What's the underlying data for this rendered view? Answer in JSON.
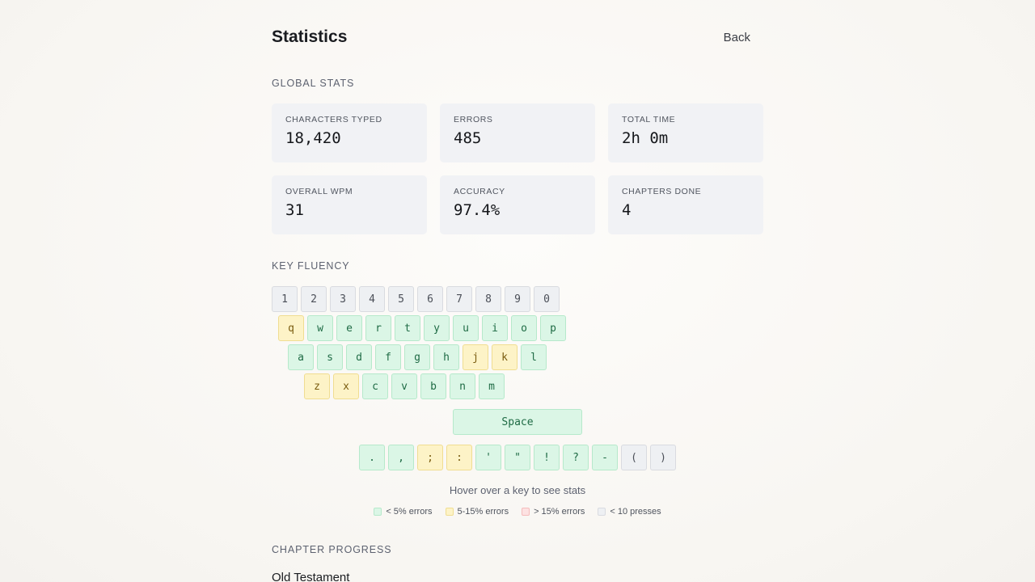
{
  "header": {
    "title": "Statistics",
    "back_label": "Back"
  },
  "global_stats": {
    "section_label": "GLOBAL STATS",
    "cards": [
      {
        "label": "CHARACTERS TYPED",
        "value": "18,420"
      },
      {
        "label": "ERRORS",
        "value": "485"
      },
      {
        "label": "TOTAL TIME",
        "value": "2h 0m"
      },
      {
        "label": "OVERALL WPM",
        "value": "31"
      },
      {
        "label": "ACCURACY",
        "value": "97.4%"
      },
      {
        "label": "CHAPTERS DONE",
        "value": "4"
      }
    ]
  },
  "key_fluency": {
    "section_label": "KEY FLUENCY",
    "rows": [
      [
        {
          "key": "1",
          "level": "gray"
        },
        {
          "key": "2",
          "level": "gray"
        },
        {
          "key": "3",
          "level": "gray"
        },
        {
          "key": "4",
          "level": "gray"
        },
        {
          "key": "5",
          "level": "gray"
        },
        {
          "key": "6",
          "level": "gray"
        },
        {
          "key": "7",
          "level": "gray"
        },
        {
          "key": "8",
          "level": "gray"
        },
        {
          "key": "9",
          "level": "gray"
        },
        {
          "key": "0",
          "level": "gray"
        }
      ],
      [
        {
          "key": "q",
          "level": "yellow"
        },
        {
          "key": "w",
          "level": "green"
        },
        {
          "key": "e",
          "level": "green"
        },
        {
          "key": "r",
          "level": "green"
        },
        {
          "key": "t",
          "level": "green"
        },
        {
          "key": "y",
          "level": "green"
        },
        {
          "key": "u",
          "level": "green"
        },
        {
          "key": "i",
          "level": "green"
        },
        {
          "key": "o",
          "level": "green"
        },
        {
          "key": "p",
          "level": "green"
        }
      ],
      [
        {
          "key": "a",
          "level": "green"
        },
        {
          "key": "s",
          "level": "green"
        },
        {
          "key": "d",
          "level": "green"
        },
        {
          "key": "f",
          "level": "green"
        },
        {
          "key": "g",
          "level": "green"
        },
        {
          "key": "h",
          "level": "green"
        },
        {
          "key": "j",
          "level": "yellow"
        },
        {
          "key": "k",
          "level": "yellow"
        },
        {
          "key": "l",
          "level": "green"
        }
      ],
      [
        {
          "key": "z",
          "level": "yellow"
        },
        {
          "key": "x",
          "level": "yellow"
        },
        {
          "key": "c",
          "level": "green"
        },
        {
          "key": "v",
          "level": "green"
        },
        {
          "key": "b",
          "level": "green"
        },
        {
          "key": "n",
          "level": "green"
        },
        {
          "key": "m",
          "level": "green"
        }
      ]
    ],
    "space": {
      "key": "Space",
      "level": "green"
    },
    "punctuation": [
      {
        "key": ".",
        "level": "green"
      },
      {
        "key": ",",
        "level": "green"
      },
      {
        "key": ";",
        "level": "yellow"
      },
      {
        "key": ":",
        "level": "yellow"
      },
      {
        "key": "'",
        "level": "green"
      },
      {
        "key": "\"",
        "level": "green"
      },
      {
        "key": "!",
        "level": "green"
      },
      {
        "key": "?",
        "level": "green"
      },
      {
        "key": "-",
        "level": "green"
      },
      {
        "key": "(",
        "level": "gray"
      },
      {
        "key": ")",
        "level": "gray"
      }
    ],
    "hover_hint": "Hover over a key to see stats",
    "legend": [
      {
        "level": "green",
        "label": "< 5% errors"
      },
      {
        "level": "yellow",
        "label": "5-15% errors"
      },
      {
        "level": "red",
        "label": "> 15% errors"
      },
      {
        "level": "gray",
        "label": "< 10 presses"
      }
    ]
  },
  "chapter_progress": {
    "section_label": "CHAPTER PROGRESS",
    "group_title": "Old Testament"
  },
  "colors": {
    "green": "#dbf6e6",
    "yellow": "#fdf3c7",
    "red": "#fde2e2",
    "gray": "#eef0f3",
    "card_bg": "#f1f2f5"
  }
}
